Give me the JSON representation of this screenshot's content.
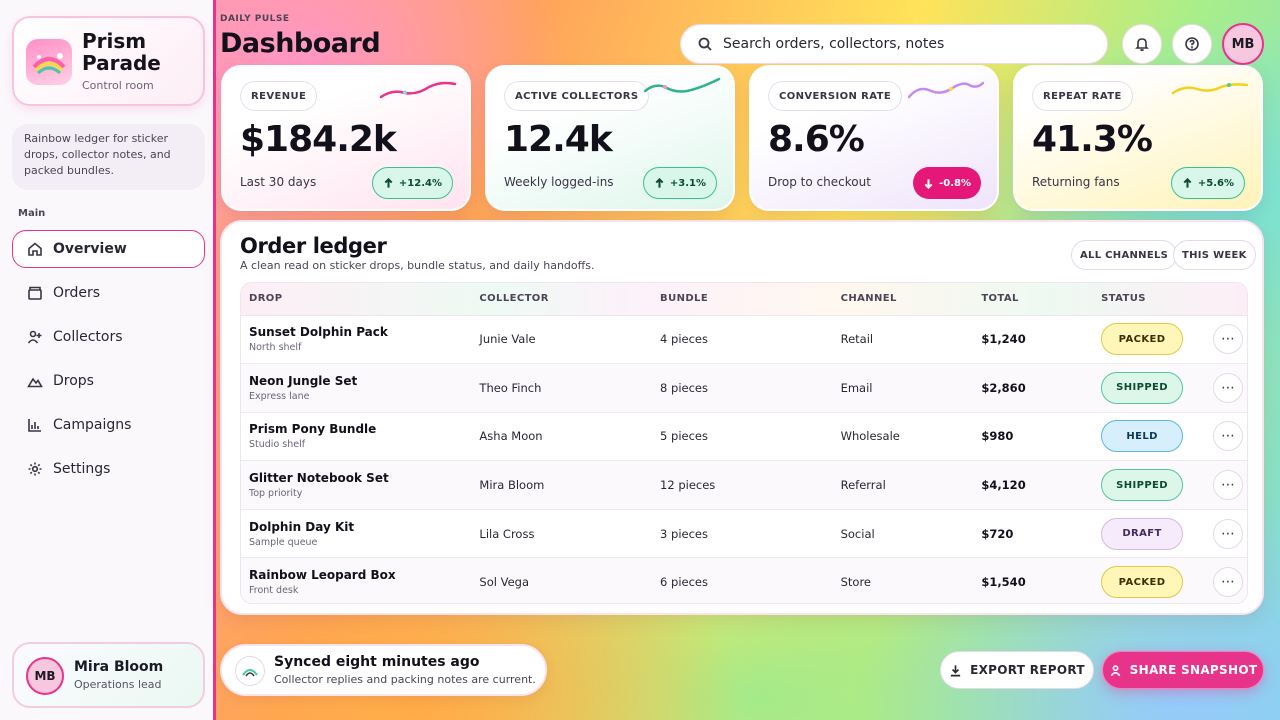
{
  "brand": {
    "name": "Prism Parade",
    "subtitle": "Control room",
    "tagline": "Rainbow ledger for sticker drops, collector notes, and packed bundles."
  },
  "sidebar": {
    "section_label": "Main",
    "items": [
      {
        "label": "Overview",
        "icon": "home-icon",
        "active": true
      },
      {
        "label": "Orders",
        "icon": "box-icon"
      },
      {
        "label": "Collectors",
        "icon": "user-plus-icon"
      },
      {
        "label": "Drops",
        "icon": "mountain-icon"
      },
      {
        "label": "Campaigns",
        "icon": "bar-chart-icon"
      },
      {
        "label": "Settings",
        "icon": "gear-icon"
      }
    ],
    "user": {
      "initials": "MB",
      "name": "Mira Bloom",
      "role": "Operations lead"
    }
  },
  "header": {
    "eyebrow": "DAILY PULSE",
    "title": "Dashboard",
    "search_placeholder": "Search orders, collectors, notes",
    "avatar_initials": "MB"
  },
  "kpis": [
    {
      "label": "REVENUE",
      "value": "$184.2k",
      "note": "Last 30 days",
      "delta": "+12.4%",
      "direction": "up",
      "spark_color": "#e8338a"
    },
    {
      "label": "ACTIVE COLLECTORS",
      "value": "12.4k",
      "note": "Weekly logged-ins",
      "delta": "+3.1%",
      "direction": "up",
      "spark_color": "#2fb38c"
    },
    {
      "label": "CONVERSION RATE",
      "value": "8.6%",
      "note": "Drop to checkout",
      "delta": "-0.8%",
      "direction": "down",
      "spark_color": "#c58af0"
    },
    {
      "label": "REPEAT RATE",
      "value": "41.3%",
      "note": "Returning fans",
      "delta": "+5.6%",
      "direction": "up",
      "spark_color": "#f2d21a"
    }
  ],
  "ledger": {
    "title": "Order ledger",
    "subtitle": "A clean read on sticker drops, bundle status, and daily handoffs.",
    "filters": [
      "ALL CHANNELS",
      "THIS WEEK"
    ],
    "columns": [
      "DROP",
      "COLLECTOR",
      "BUNDLE",
      "CHANNEL",
      "TOTAL",
      "STATUS"
    ],
    "rows": [
      {
        "drop": "Sunset Dolphin Pack",
        "note": "North shelf",
        "collector": "Junie Vale",
        "bundle": "4 pieces",
        "channel": "Retail",
        "total": "$1,240",
        "status": "PACKED"
      },
      {
        "drop": "Neon Jungle Set",
        "note": "Express lane",
        "collector": "Theo Finch",
        "bundle": "8 pieces",
        "channel": "Email",
        "total": "$2,860",
        "status": "SHIPPED"
      },
      {
        "drop": "Prism Pony Bundle",
        "note": "Studio shelf",
        "collector": "Asha Moon",
        "bundle": "5 pieces",
        "channel": "Wholesale",
        "total": "$980",
        "status": "HELD"
      },
      {
        "drop": "Glitter Notebook Set",
        "note": "Top priority",
        "collector": "Mira Bloom",
        "bundle": "12 pieces",
        "channel": "Referral",
        "total": "$4,120",
        "status": "SHIPPED"
      },
      {
        "drop": "Dolphin Day Kit",
        "note": "Sample queue",
        "collector": "Lila Cross",
        "bundle": "3 pieces",
        "channel": "Social",
        "total": "$720",
        "status": "DRAFT"
      },
      {
        "drop": "Rainbow Leopard Box",
        "note": "Front desk",
        "collector": "Sol Vega",
        "bundle": "6 pieces",
        "channel": "Store",
        "total": "$1,540",
        "status": "PACKED"
      }
    ]
  },
  "footer": {
    "sync_title": "Synced eight minutes ago",
    "sync_sub": "Collector replies and packing notes are current.",
    "export_label": "EXPORT REPORT",
    "share_label": "SHARE SNAPSHOT"
  },
  "colors": {
    "accent": "#e8338a",
    "success": "#3dbf93",
    "danger": "#e5187a"
  }
}
